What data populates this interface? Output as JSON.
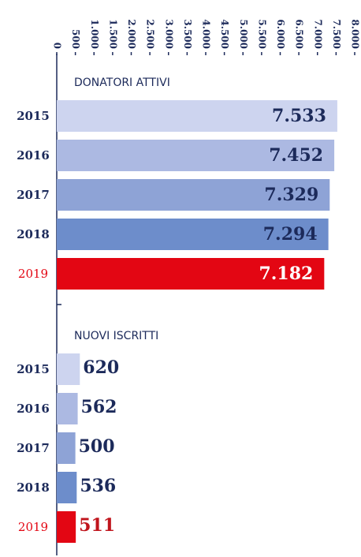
{
  "chart_data": {
    "type": "bar",
    "categories": [
      "2015",
      "2016",
      "2017",
      "2018",
      "2019"
    ],
    "series": [
      {
        "name": "DONATORI ATTIVI",
        "values": [
          7533,
          7452,
          7329,
          7294,
          7182
        ],
        "value_labels": [
          "7.533",
          "7.452",
          "7.329",
          "7.294",
          "7.182"
        ]
      },
      {
        "name": "NUOVI ISCRITTI",
        "values": [
          620,
          562,
          500,
          536,
          511
        ]
      }
    ],
    "colors": [
      "#cdd4ef",
      "#acb9e2",
      "#8ea3d6",
      "#6d8dcb",
      "#e30613"
    ],
    "xlim": [
      0,
      8000
    ],
    "xticks": [
      0,
      500,
      {
        "value": 1000,
        "label": "1.000"
      },
      {
        "value": 1500,
        "label": "1.500"
      },
      {
        "value": 2000,
        "label": "2.000"
      },
      {
        "value": 2500,
        "label": "2.500"
      },
      {
        "value": 3000,
        "label": "3.000"
      },
      {
        "value": 3500,
        "label": "3.500"
      },
      {
        "value": 4000,
        "label": "4.000"
      },
      {
        "value": 4500,
        "label": "4.500"
      },
      {
        "value": 5000,
        "label": "5.000"
      },
      {
        "value": 5500,
        "label": "5.500"
      },
      {
        "value": 6000,
        "label": "6.000"
      },
      {
        "value": 6500,
        "label": "6.500"
      },
      {
        "value": 7000,
        "label": "7.000"
      },
      {
        "value": 7500,
        "label": "7.500"
      },
      {
        "value": 8000,
        "label": "8.000"
      }
    ]
  }
}
